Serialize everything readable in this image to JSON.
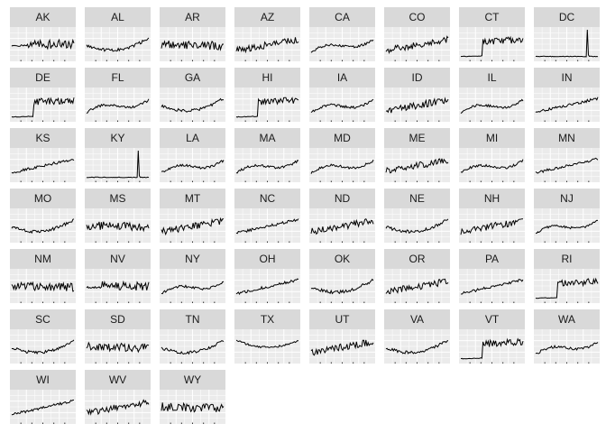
{
  "chart_data": {
    "type": "line",
    "title": "",
    "xlabel": "",
    "ylabel": "",
    "facet_by": "state",
    "grid": true,
    "panel_background": "#ebebeb",
    "strip_background": "#d9d9d9",
    "line_color": "#000000",
    "series": [
      {
        "name": "AK",
        "shape": "flat-then-volatile"
      },
      {
        "name": "AL",
        "shape": "dip-then-rise"
      },
      {
        "name": "AR",
        "shape": "volatile-flat"
      },
      {
        "name": "AZ",
        "shape": "volatile-rise"
      },
      {
        "name": "CA",
        "shape": "rise-dip-rise"
      },
      {
        "name": "CO",
        "shape": "volatile-rise"
      },
      {
        "name": "CT",
        "shape": "late-jump"
      },
      {
        "name": "DC",
        "shape": "flat-with-spike"
      },
      {
        "name": "DE",
        "shape": "late-jump"
      },
      {
        "name": "FL",
        "shape": "rise-dip-rise"
      },
      {
        "name": "GA",
        "shape": "dip-then-rise"
      },
      {
        "name": "HI",
        "shape": "late-jump"
      },
      {
        "name": "IA",
        "shape": "rise-dip-rise"
      },
      {
        "name": "ID",
        "shape": "volatile-rise"
      },
      {
        "name": "IL",
        "shape": "rise-dip-rise"
      },
      {
        "name": "IN",
        "shape": "steady-rise"
      },
      {
        "name": "KS",
        "shape": "steady-rise"
      },
      {
        "name": "KY",
        "shape": "flat-with-spike"
      },
      {
        "name": "LA",
        "shape": "rise-dip-rise"
      },
      {
        "name": "MA",
        "shape": "rise-dip-rise"
      },
      {
        "name": "MD",
        "shape": "rise-dip-rise"
      },
      {
        "name": "ME",
        "shape": "volatile-rise"
      },
      {
        "name": "MI",
        "shape": "rise-dip-rise"
      },
      {
        "name": "MN",
        "shape": "steady-rise"
      },
      {
        "name": "MO",
        "shape": "dip-then-rise"
      },
      {
        "name": "MS",
        "shape": "volatile-flat"
      },
      {
        "name": "MT",
        "shape": "volatile-rise"
      },
      {
        "name": "NC",
        "shape": "steady-rise"
      },
      {
        "name": "ND",
        "shape": "volatile-rise"
      },
      {
        "name": "NE",
        "shape": "dip-then-rise"
      },
      {
        "name": "NH",
        "shape": "volatile-rise"
      },
      {
        "name": "NJ",
        "shape": "rise-dip-rise"
      },
      {
        "name": "NM",
        "shape": "volatile-flat"
      },
      {
        "name": "NV",
        "shape": "flat-then-volatile"
      },
      {
        "name": "NY",
        "shape": "rise-dip-rise"
      },
      {
        "name": "OH",
        "shape": "steady-rise"
      },
      {
        "name": "OK",
        "shape": "dip-then-rise"
      },
      {
        "name": "OR",
        "shape": "volatile-rise"
      },
      {
        "name": "PA",
        "shape": "steady-rise"
      },
      {
        "name": "RI",
        "shape": "late-jump"
      },
      {
        "name": "SC",
        "shape": "dip-then-rise"
      },
      {
        "name": "SD",
        "shape": "volatile-flat"
      },
      {
        "name": "TN",
        "shape": "dip-then-rise"
      },
      {
        "name": "TX",
        "shape": "fall-then-rise"
      },
      {
        "name": "UT",
        "shape": "volatile-rise"
      },
      {
        "name": "VA",
        "shape": "dip-then-rise"
      },
      {
        "name": "VT",
        "shape": "late-jump"
      },
      {
        "name": "WA",
        "shape": "rise-dip-rise"
      },
      {
        "name": "WI",
        "shape": "steady-rise"
      },
      {
        "name": "WV",
        "shape": "volatile-rise"
      },
      {
        "name": "WY",
        "shape": "volatile-flat"
      }
    ]
  }
}
